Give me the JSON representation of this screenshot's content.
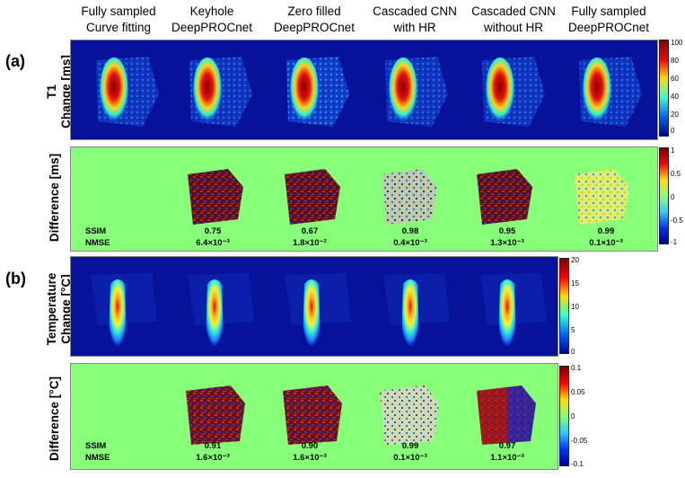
{
  "columns": [
    {
      "line1": "Fully sampled",
      "line2": "Curve fitting"
    },
    {
      "line1": "Keyhole",
      "line2": "DeepPROCnet"
    },
    {
      "line1": "Zero filled",
      "line2": "DeepPROCnet"
    },
    {
      "line1": "Cascaded CNN",
      "line2": "with HR"
    },
    {
      "line1": "Cascaded CNN",
      "line2": "without HR"
    },
    {
      "line1": "Fully sampled",
      "line2": "DeepPROCnet"
    }
  ],
  "panel_a": {
    "label": "(a)",
    "row1_label_line1": "T1",
    "row1_label_line2": "Change [ms]",
    "row2_label": "Difference [ms]",
    "colorbar1_ticks": [
      "100",
      "80",
      "60",
      "40",
      "20",
      "0"
    ],
    "colorbar2_ticks": [
      "1",
      "0.5",
      "0",
      "-0.5",
      "-1"
    ],
    "metric_labels": {
      "ssim": "SSIM",
      "nmse": "NMSE"
    },
    "metrics": [
      {
        "ssim": "0.75",
        "nmse": "6.4×10⁻³"
      },
      {
        "ssim": "0.67",
        "nmse": "1.8×10⁻²"
      },
      {
        "ssim": "0.98",
        "nmse": "0.4×10⁻³"
      },
      {
        "ssim": "0.95",
        "nmse": "1.3×10⁻³"
      },
      {
        "ssim": "0.99",
        "nmse": "0.1×10⁻³"
      }
    ]
  },
  "panel_b": {
    "label": "(b)",
    "row1_label_line1": "Temperature",
    "row1_label_line2": "Change [°C]",
    "row2_label": "Difference [°C]",
    "colorbar1_ticks": [
      "20",
      "15",
      "10",
      "5",
      "0"
    ],
    "colorbar2_ticks": [
      "0.1",
      "0.05",
      "0",
      "-0.05",
      "-0.1"
    ],
    "metric_labels": {
      "ssim": "SSIM",
      "nmse": "NMSE"
    },
    "metrics": [
      {
        "ssim": "0.91",
        "nmse": "1.6×10⁻³"
      },
      {
        "ssim": "0.90",
        "nmse": "1.6×10⁻³"
      },
      {
        "ssim": "0.99",
        "nmse": "0.1×10⁻³"
      },
      {
        "ssim": "0.97",
        "nmse": "1.1×10⁻³"
      }
    ]
  },
  "colors": {
    "blue_bg": "#07129a",
    "green_bg": "#88ff78",
    "hot": "#e01010",
    "diff_dark": "#5a0e1e"
  }
}
